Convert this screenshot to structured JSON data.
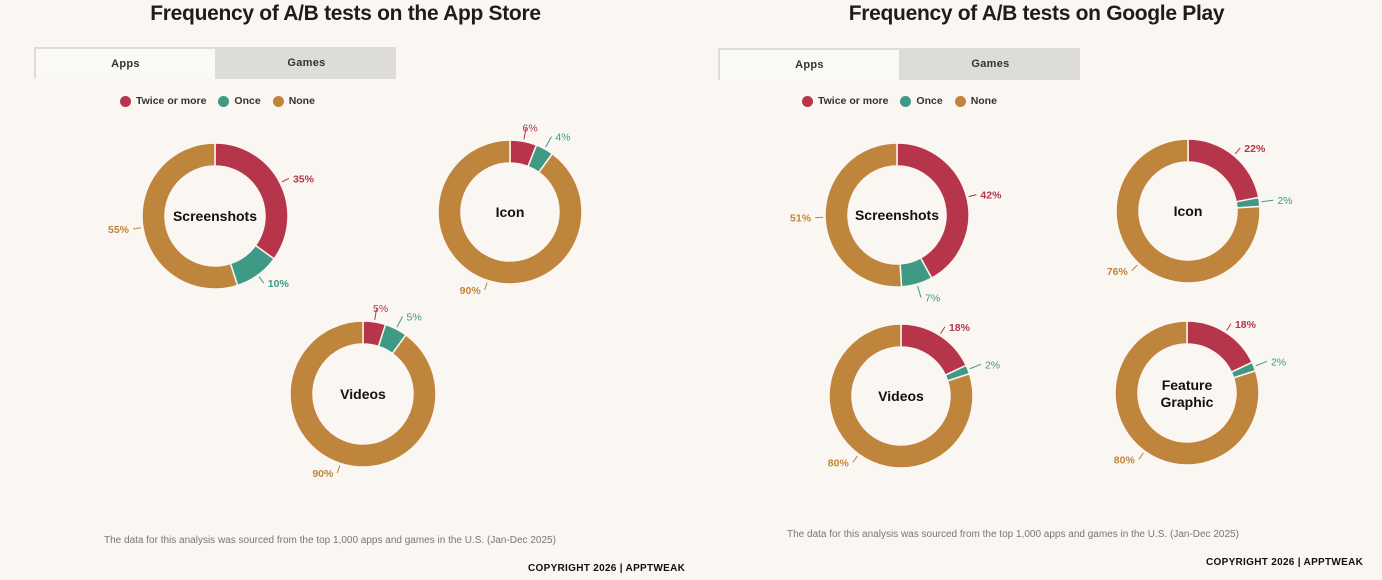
{
  "colors": {
    "twice": "#b6354a",
    "once": "#3e9a85",
    "none": "#c0853d"
  },
  "legend": {
    "twice": "Twice or more",
    "once": "Once",
    "none": "None"
  },
  "tabs": {
    "apps": "Apps",
    "games": "Games"
  },
  "footnote": "The data for this analysis was sourced from the top 1,000 apps and games in the U.S. (Jan-Dec 2025)",
  "copyright": "COPYRIGHT 2026 | APPTWEAK",
  "chart_data": [
    {
      "type": "pie",
      "title": "Frequency of A/B tests on the App Store",
      "series_names": [
        "Twice or more",
        "Once",
        "None"
      ],
      "charts": [
        {
          "label": "Screenshots",
          "values": [
            35,
            10,
            55
          ]
        },
        {
          "label": "Icon",
          "values": [
            6,
            4,
            90
          ]
        },
        {
          "label": "Videos",
          "values": [
            5,
            5,
            90
          ]
        }
      ]
    },
    {
      "type": "pie",
      "title": "Frequency of A/B tests on Google Play",
      "series_names": [
        "Twice or more",
        "Once",
        "None"
      ],
      "charts": [
        {
          "label": "Screenshots",
          "values": [
            42,
            7,
            51
          ]
        },
        {
          "label": "Icon",
          "values": [
            22,
            2,
            76
          ]
        },
        {
          "label": "Videos",
          "values": [
            18,
            2,
            80
          ]
        },
        {
          "label": "Feature Graphic",
          "values": [
            18,
            2,
            80
          ]
        }
      ]
    }
  ]
}
